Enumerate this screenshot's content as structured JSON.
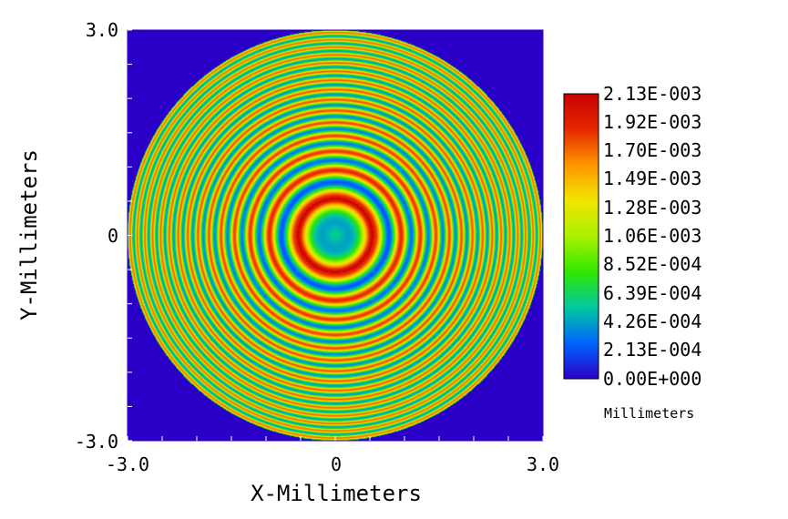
{
  "chart_data": {
    "type": "heatmap",
    "title": "",
    "xlabel": "X-Millimeters",
    "ylabel": "Y-Millimeters",
    "xlim": [
      -3.0,
      3.0
    ],
    "ylim": [
      -3.0,
      3.0
    ],
    "x_ticks": [
      "-3.0",
      "0",
      "3.0"
    ],
    "y_ticks": [
      "3.0",
      "0",
      "-3.0"
    ],
    "grid": false,
    "pattern": "concentric circular fringes inside a circular aperture",
    "aperture_radius": 3.0,
    "first_bright_ring_radius": 0.55,
    "colorbar": {
      "min": 0.0,
      "max": 0.00213,
      "unit_label": "Millimeters",
      "tick_labels": [
        "2.13E-003",
        "1.92E-003",
        "1.70E-003",
        "1.49E-003",
        "1.28E-003",
        "1.06E-003",
        "8.52E-004",
        "6.39E-004",
        "4.26E-004",
        "2.13E-004",
        "0.00E+000"
      ],
      "colors": [
        "#2a00c8",
        "#0064ff",
        "#00c8a0",
        "#32e600",
        "#aaf000",
        "#f0e600",
        "#ff9600",
        "#e62800",
        "#c80000"
      ]
    },
    "background_color": "#2a00c8"
  }
}
